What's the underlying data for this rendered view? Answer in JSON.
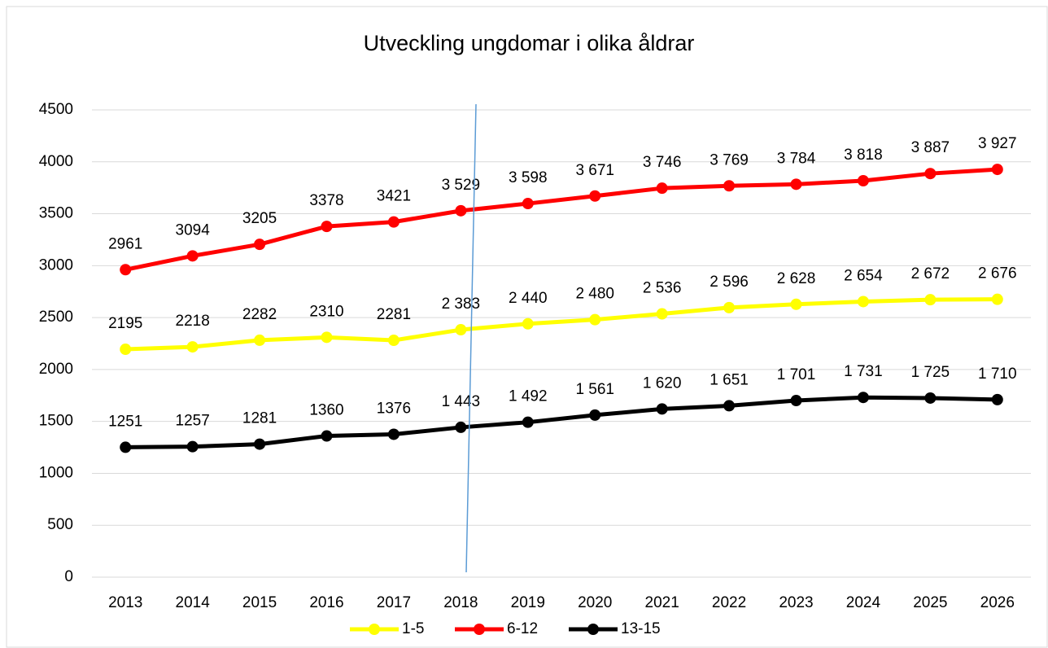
{
  "chart_data": {
    "type": "line",
    "title": "Utveckling ungdomar i olika åldrar",
    "categories": [
      "2013",
      "2014",
      "2015",
      "2016",
      "2017",
      "2018",
      "2019",
      "2020",
      "2021",
      "2022",
      "2023",
      "2024",
      "2025",
      "2026"
    ],
    "series": [
      {
        "name": "1-5",
        "color": "#ffff00",
        "values": [
          2195,
          2218,
          2282,
          2310,
          2281,
          2383,
          2440,
          2480,
          2536,
          2596,
          2628,
          2654,
          2672,
          2676
        ],
        "value_labels": [
          "2195",
          "2218",
          "2282",
          "2310",
          "2281",
          "2 383",
          "2 440",
          "2 480",
          "2 536",
          "2 596",
          "2 628",
          "2 654",
          "2 672",
          "2 676"
        ]
      },
      {
        "name": "6-12",
        "color": "#ff0000",
        "values": [
          2961,
          3094,
          3205,
          3378,
          3421,
          3529,
          3598,
          3671,
          3746,
          3769,
          3784,
          3818,
          3887,
          3927
        ],
        "value_labels": [
          "2961",
          "3094",
          "3205",
          "3378",
          "3421",
          "3 529",
          "3 598",
          "3 671",
          "3 746",
          "3 769",
          "3 784",
          "3 818",
          "3 887",
          "3 927"
        ]
      },
      {
        "name": "13-15",
        "color": "#000000",
        "values": [
          1251,
          1257,
          1281,
          1360,
          1376,
          1443,
          1492,
          1561,
          1620,
          1651,
          1701,
          1731,
          1725,
          1710
        ],
        "value_labels": [
          "1251",
          "1257",
          "1281",
          "1360",
          "1376",
          "1 443",
          "1 492",
          "1 561",
          "1 620",
          "1 651",
          "1 701",
          "1 731",
          "1 725",
          "1 710"
        ]
      }
    ],
    "ylim": [
      0,
      4500
    ],
    "yticks": [
      0,
      500,
      1000,
      1500,
      2000,
      2500,
      3000,
      3500,
      4000,
      4500
    ],
    "grid": true,
    "legend": "bottom"
  }
}
